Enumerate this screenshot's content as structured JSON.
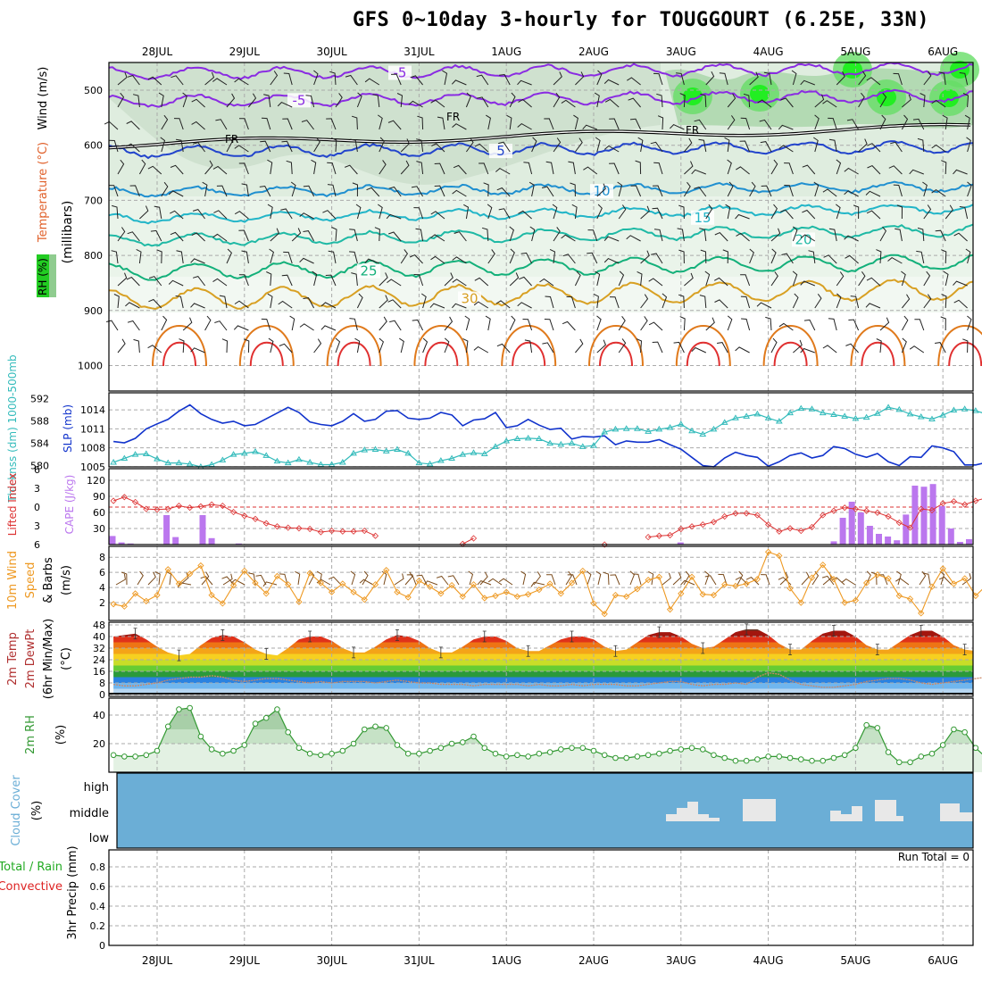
{
  "title": "GFS 0~10day 3-hourly for TOUGGOURT (6.25E, 33N)",
  "dates": [
    "28JUL",
    "29JUL",
    "30JUL",
    "31JUL",
    "1AUG",
    "2AUG",
    "3AUG",
    "4AUG",
    "5AUG",
    "6AUG"
  ],
  "colors": {
    "frame": "#000000",
    "grid": "#aaaaaa",
    "slp": "#1133cc",
    "thickness": "#33bbbb",
    "cape": "#bb77ee",
    "lifted_index": "#dd3333",
    "wind_speed": "#ee9922",
    "wind_barb": "#7a4a1a",
    "rh2m": "#339933",
    "rh_fill": "#e3f1e3",
    "cloud_bg": "#6baed6",
    "cloud_block": "#e8e8e8",
    "fr_line": "#000000"
  },
  "panels": {
    "upper_air": {
      "ylabels": [
        "RH (%)",
        "Temperature (°C)",
        "Wind (m/s)",
        "(millibars)"
      ],
      "levels": [
        500,
        600,
        700,
        800,
        900,
        1000
      ],
      "fr_label": "FR",
      "isotherms": [
        {
          "label": "-5",
          "color": "#8a2be2",
          "mb": 520,
          "amp": 10
        },
        {
          "label": "-5",
          "color": "#8a2be2",
          "mb": 470,
          "amp": 10
        },
        {
          "label": "5",
          "color": "#2244cc",
          "mb": 612,
          "amp": 10
        },
        {
          "label": "10",
          "color": "#1f8fd0",
          "mb": 685,
          "amp": 8
        },
        {
          "label": "15",
          "color": "#22b5c8",
          "mb": 733,
          "amp": 8
        },
        {
          "label": "20",
          "color": "#1fb9a5",
          "mb": 773,
          "amp": 10
        },
        {
          "label": "25",
          "color": "#13b07a",
          "mb": 830,
          "amp": 14
        },
        {
          "label": "30",
          "color": "#d8a023",
          "mb": 880,
          "amp": 18
        }
      ],
      "contour_labels": [
        "-5",
        "-5",
        "FR",
        "FR",
        "5",
        "5",
        "10",
        "10",
        "15",
        "20",
        "25",
        "25",
        "30",
        "30"
      ]
    },
    "pressure": {
      "ylabel_left": "Thicknss (dm) 1000-500mb",
      "ylabel_right": "SLP (mb)",
      "thickness_ticks": [
        "592",
        "588",
        "584",
        "580"
      ],
      "slp_ticks": [
        "1014",
        "1011",
        "1008",
        "1005"
      ]
    },
    "stability": {
      "ylabel_left": "Lifted Index",
      "ylabel_right": "CAPE (J/kg)",
      "li_ticks": [
        "-6",
        "-3",
        "0",
        "3",
        "6"
      ],
      "cape_ticks": [
        "120",
        "90",
        "60",
        "30"
      ]
    },
    "wind10m": {
      "ylabels": [
        "10m Wind",
        "Speed",
        "& Barbs",
        "(m/s)"
      ],
      "ticks": [
        "8",
        "6",
        "4",
        "2"
      ]
    },
    "temp2m": {
      "ylabels": [
        "2m Temp",
        "2m DewPt",
        "(6hr Min/Max)",
        "(°C)"
      ],
      "ticks": [
        "48",
        "40",
        "32",
        "24",
        "16",
        "8",
        "0"
      ]
    },
    "rh2m": {
      "ylabels": [
        "2m RH",
        "(%)"
      ],
      "ticks": [
        "40",
        "20"
      ]
    },
    "cloud": {
      "ylabels": [
        "Cloud Cover",
        "(%)"
      ],
      "levels": [
        "high",
        "middle",
        "low"
      ]
    },
    "precip": {
      "ylabels": [
        "Total / Rain",
        "Convective",
        "3hr Precip (mm)"
      ],
      "run_total": "Run Total = 0",
      "ticks": [
        "0.8",
        "0.6",
        "0.4",
        "0.2",
        "0"
      ]
    }
  },
  "chart_data": [
    {
      "type": "line",
      "title": "1000-500mb Thickness (dm) and SLP (mb)",
      "x_step_hours": 3,
      "series": [
        {
          "name": "SLP (mb)",
          "ylim": [
            1004,
            1016
          ],
          "values": [
            1009,
            1008.8,
            1009.5,
            1011,
            1011.8,
            1012.5,
            1013.8,
            1014.8,
            1013.4,
            1012.5,
            1011.9,
            1012.2,
            1011.5,
            1011.7,
            1012.6,
            1013.5,
            1014.4,
            1013.6,
            1012.1,
            1011.7,
            1011.5,
            1012.2,
            1013.4,
            1012.2,
            1012.5,
            1013.8,
            1013.9,
            1012.7,
            1012.5,
            1012.7,
            1013.6,
            1013.2,
            1011.5,
            1012.4,
            1012.6,
            1013.6,
            1011.2,
            1011.5,
            1012.5,
            1011.6,
            1010.9,
            1011.1,
            1009.4,
            1009.8,
            1009.7,
            1009.9,
            1008.5,
            1009.1,
            1008.9,
            1008.9,
            1009.3,
            1008.5,
            1007.8,
            1006.5,
            1005.2,
            1005,
            1006.4,
            1007.3,
            1006.8,
            1006.5,
            1005.1,
            1005.8,
            1006.8,
            1007.2,
            1006.4,
            1006.8,
            1008.2,
            1007.9,
            1007,
            1006.5,
            1007.1,
            1005.8,
            1005.2,
            1006.6,
            1006.5,
            1008.3,
            1008,
            1007.4,
            1005.3,
            1005.3,
            1005.7,
            1005.8,
            1005.9,
            1006.9
          ]
        },
        {
          "name": "Thickness (dm)",
          "ylim": [
            579,
            593
          ],
          "values": [
            580.6,
            581.3,
            582,
            582.1,
            581.2,
            580.5,
            580.5,
            580.3,
            579.8,
            580.2,
            581,
            582,
            582.2,
            582.5,
            581.8,
            580.8,
            580.5,
            581.1,
            580.6,
            580.2,
            580.2,
            580.6,
            582.2,
            582.8,
            582.9,
            582.6,
            582.9,
            582.2,
            580.5,
            580.3,
            580.9,
            581.3,
            582,
            582.3,
            582.1,
            583.4,
            584.4,
            584.8,
            584.9,
            584.8,
            584,
            583.8,
            584,
            583.4,
            583.6,
            586,
            586.5,
            586.6,
            586.6,
            586.1,
            586.5,
            586.8,
            587.4,
            586.2,
            585.6,
            586.5,
            587.7,
            588.5,
            588.8,
            589.2,
            588.5,
            587.9,
            589.4,
            590.2,
            590.1,
            589.4,
            589.1,
            588.8,
            588.4,
            588.6,
            589.3,
            590.4,
            590,
            589.2,
            588.7,
            588.3,
            589,
            589.9,
            590.1,
            589.8,
            589.2,
            588.6,
            589.3,
            588.6
          ]
        }
      ],
      "legend": [
        "SLP",
        "Thickness"
      ]
    },
    {
      "type": "bar",
      "title": "CAPE (J/kg) and Lifted Index",
      "ylim_cape": [
        0,
        135
      ],
      "ylim_li": [
        6,
        -6
      ],
      "x_step_hours": 3,
      "series": [
        {
          "name": "CAPE",
          "values": [
            16,
            4,
            2,
            0,
            0,
            0,
            55,
            14,
            0,
            0,
            55,
            12,
            0,
            0,
            2,
            0,
            0,
            0,
            0,
            0,
            0,
            0,
            0,
            0,
            0,
            0,
            0,
            0,
            0,
            0,
            0,
            0,
            0,
            0,
            0,
            0,
            0,
            0,
            0,
            0,
            0,
            0,
            0,
            0,
            0,
            0,
            0,
            0,
            0,
            0,
            0,
            0,
            0,
            0,
            0,
            0,
            0,
            0,
            0,
            0,
            0,
            0,
            0,
            4,
            0,
            0,
            0,
            0,
            0,
            0,
            0,
            0,
            0,
            0,
            0,
            0,
            0,
            0,
            0,
            0,
            6,
            50,
            80,
            60,
            35,
            20,
            15,
            8,
            56,
            110,
            108,
            113,
            72,
            30,
            5,
            10
          ]
        },
        {
          "name": "Lifted Index",
          "values": [
            -1,
            -1.6,
            -0.8,
            0.3,
            0.4,
            0.3,
            -0.2,
            0.1,
            -0.1,
            -0.4,
            -0.2,
            0.8,
            1.4,
            1.9,
            2.6,
            3.1,
            3.3,
            3.4,
            3.5,
            4,
            3.8,
            3.9,
            3.9,
            3.8,
            4.6,
            6.5,
            6.8,
            6.6,
            6.4,
            6.8,
            6.7,
            6.9,
            5.9,
            5,
            6.5,
            6.5,
            6.5,
            6.8,
            6.3,
            6.9,
            6.8,
            6.7,
            6.9,
            6.9,
            6.5,
            6,
            7,
            6.8,
            6.6,
            4.8,
            4.6,
            4.5,
            3.5,
            3.1,
            2.8,
            2.4,
            1.5,
            1,
            1,
            1.3,
            2.8,
            3.9,
            3.4,
            3.8,
            3.2,
            1.3,
            0.6,
            0.1,
            0.3,
            0.6,
            0.9,
            1.5,
            2.5,
            3.3,
            0.3,
            0.5,
            -0.6,
            -0.9,
            -0.4,
            -1,
            -1.5,
            0.1,
            0,
            0,
            -0.5,
            -1.5,
            -2,
            -1.8,
            -2.5,
            -1.5,
            -0.5,
            0.6,
            0,
            -0.1
          ]
        }
      ]
    },
    {
      "type": "line",
      "title": "10m Wind Speed (m/s)",
      "ylim": [
        0,
        9
      ],
      "x_step_hours": 3,
      "series": [
        {
          "name": "Speed",
          "values": [
            1.8,
            1.5,
            3.2,
            2.2,
            3,
            6.4,
            4.5,
            5.8,
            6.9,
            3,
            1.9,
            4.3,
            6.2,
            4.6,
            3.2,
            5.5,
            4.4,
            2.1,
            5.9,
            4.6,
            3.4,
            4.5,
            3.4,
            2.4,
            4.4,
            6.3,
            3.4,
            2.7,
            4.9,
            4.1,
            3.2,
            4.3,
            2.8,
            4.4,
            2.6,
            2.9,
            3.4,
            2.8,
            3.1,
            3.7,
            4.5,
            3.2,
            4.6,
            6.2,
            1.9,
            0.5,
            3,
            2.8,
            3.8,
            5,
            5.4,
            1.1,
            3.2,
            5.4,
            3.1,
            3,
            4.4,
            4.2,
            4.5,
            5.1,
            8.7,
            8.2,
            3.9,
            2,
            5.3,
            7,
            5.1,
            2,
            2.3,
            4.6,
            5.7,
            5.2,
            2.9,
            2.5,
            0.6,
            4.1,
            6.5,
            4.5,
            5.2,
            2.9,
            4.3,
            4.9,
            6,
            4.3,
            4.8,
            5.4,
            3,
            5.9,
            4.3,
            4.4,
            4.6,
            4.4,
            3.9,
            4.5
          ]
        }
      ]
    },
    {
      "type": "area",
      "title": "2m Temperature / Dewpoint (°C)",
      "ylim": [
        0,
        48
      ],
      "x_step_hours": 3,
      "series": [
        {
          "name": "2m Temp",
          "values": [
            40,
            41,
            42,
            38,
            33,
            29,
            27,
            28,
            34,
            39,
            41,
            40,
            36,
            31,
            28,
            27,
            32,
            38,
            40,
            40,
            37,
            32,
            29,
            29,
            33,
            38,
            41,
            40,
            37,
            32,
            29,
            29,
            33,
            38,
            40,
            40,
            37,
            32,
            30,
            30,
            34,
            38,
            40,
            40,
            38,
            33,
            30,
            31,
            36,
            41,
            43,
            43,
            40,
            35,
            32,
            33,
            38,
            43,
            45,
            45,
            41,
            35,
            31,
            31,
            37,
            42,
            44,
            44,
            40,
            34,
            31,
            31,
            36,
            41,
            44,
            44,
            40,
            34,
            31,
            30,
            32
          ]
        },
        {
          "name": "2m DewPt",
          "values": [
            7,
            6,
            6,
            7,
            8,
            10,
            11,
            12,
            12,
            13,
            12,
            10,
            9,
            10,
            11,
            11,
            10,
            9,
            8,
            9,
            8,
            9,
            9,
            9,
            8,
            9,
            10,
            9,
            8,
            8,
            7,
            7,
            7,
            6,
            7,
            7,
            7,
            7,
            6,
            7,
            6,
            6,
            7,
            6,
            7,
            7,
            7,
            6,
            6,
            7,
            8,
            9,
            9,
            7,
            6,
            7,
            7,
            8,
            7,
            12,
            15,
            14,
            10,
            7,
            6,
            5,
            5,
            6,
            7,
            9,
            10,
            11,
            11,
            10,
            8,
            7,
            8,
            9,
            10,
            11,
            12
          ]
        }
      ]
    },
    {
      "type": "line",
      "title": "2m RH (%)",
      "ylim": [
        0,
        50
      ],
      "x_step_hours": 3,
      "series": [
        {
          "name": "2m RH",
          "values": [
            12,
            11,
            11,
            12,
            15,
            32,
            44,
            45,
            25,
            16,
            13,
            15,
            19,
            34,
            38,
            44,
            28,
            17,
            13,
            12,
            13,
            15,
            20,
            30,
            32,
            31,
            19,
            13,
            13,
            15,
            17,
            20,
            21,
            25,
            17,
            13,
            11,
            12,
            11,
            13,
            14,
            16,
            17,
            17,
            15,
            12,
            10,
            10,
            11,
            12,
            13,
            15,
            16,
            17,
            16,
            12,
            10,
            8,
            8,
            9,
            11,
            11,
            10,
            9,
            8,
            8,
            10,
            12,
            17,
            33,
            31,
            14,
            7,
            7,
            11,
            13,
            19,
            30,
            28,
            17,
            10,
            9,
            12,
            17,
            15,
            18,
            24,
            30
          ]
        }
      ]
    },
    {
      "type": "bar",
      "title": "Cloud Cover (%)",
      "levels": [
        "high",
        "middle",
        "low"
      ],
      "series": [
        {
          "name": "middle",
          "values_by_day": {
            "3AUG": 45,
            "4AUG": 70,
            "5AUG": 80,
            "6AUG": 60
          }
        }
      ]
    },
    {
      "type": "bar",
      "title": "3hr Precip (mm)",
      "ylim": [
        0,
        0.9
      ],
      "series": [
        {
          "name": "Total / Rain",
          "values": []
        },
        {
          "name": "Convective",
          "values": []
        }
      ]
    }
  ]
}
